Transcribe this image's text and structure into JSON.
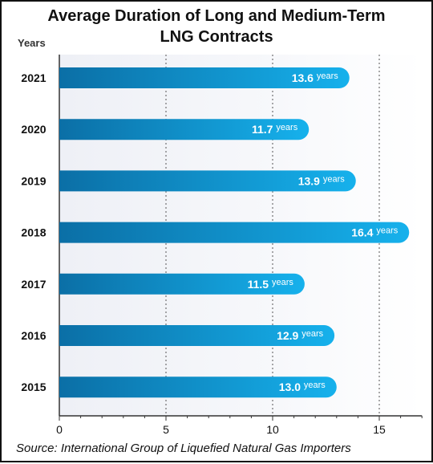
{
  "title": {
    "line1": "Average Duration of Long and Medium-Term",
    "line2": "LNG Contracts"
  },
  "y_axis_label": "Years",
  "source": "Source: International Group of Liquefied Natural Gas Importers",
  "unit_suffix": "years",
  "colors": {
    "bar_dark": "#0b6fa6",
    "bar_light": "#16b1ec",
    "label": "#ffffff",
    "gridline": "#555555",
    "plot_bg": "#f3f4f8"
  },
  "chart_data": {
    "type": "bar",
    "orientation": "horizontal",
    "categories": [
      "2021",
      "2020",
      "2019",
      "2018",
      "2017",
      "2016",
      "2015"
    ],
    "values": [
      13.6,
      11.7,
      13.9,
      16.4,
      11.5,
      12.9,
      13.0
    ],
    "value_labels": [
      "13.6",
      "11.7",
      "13.9",
      "16.4",
      "11.5",
      "12.9",
      "13.0"
    ],
    "xlim": [
      0,
      17
    ],
    "xticks": [
      0,
      5,
      10,
      15
    ],
    "grid": true,
    "title": "Average Duration of Long and Medium-Term LNG Contracts",
    "ylabel": "Years"
  }
}
